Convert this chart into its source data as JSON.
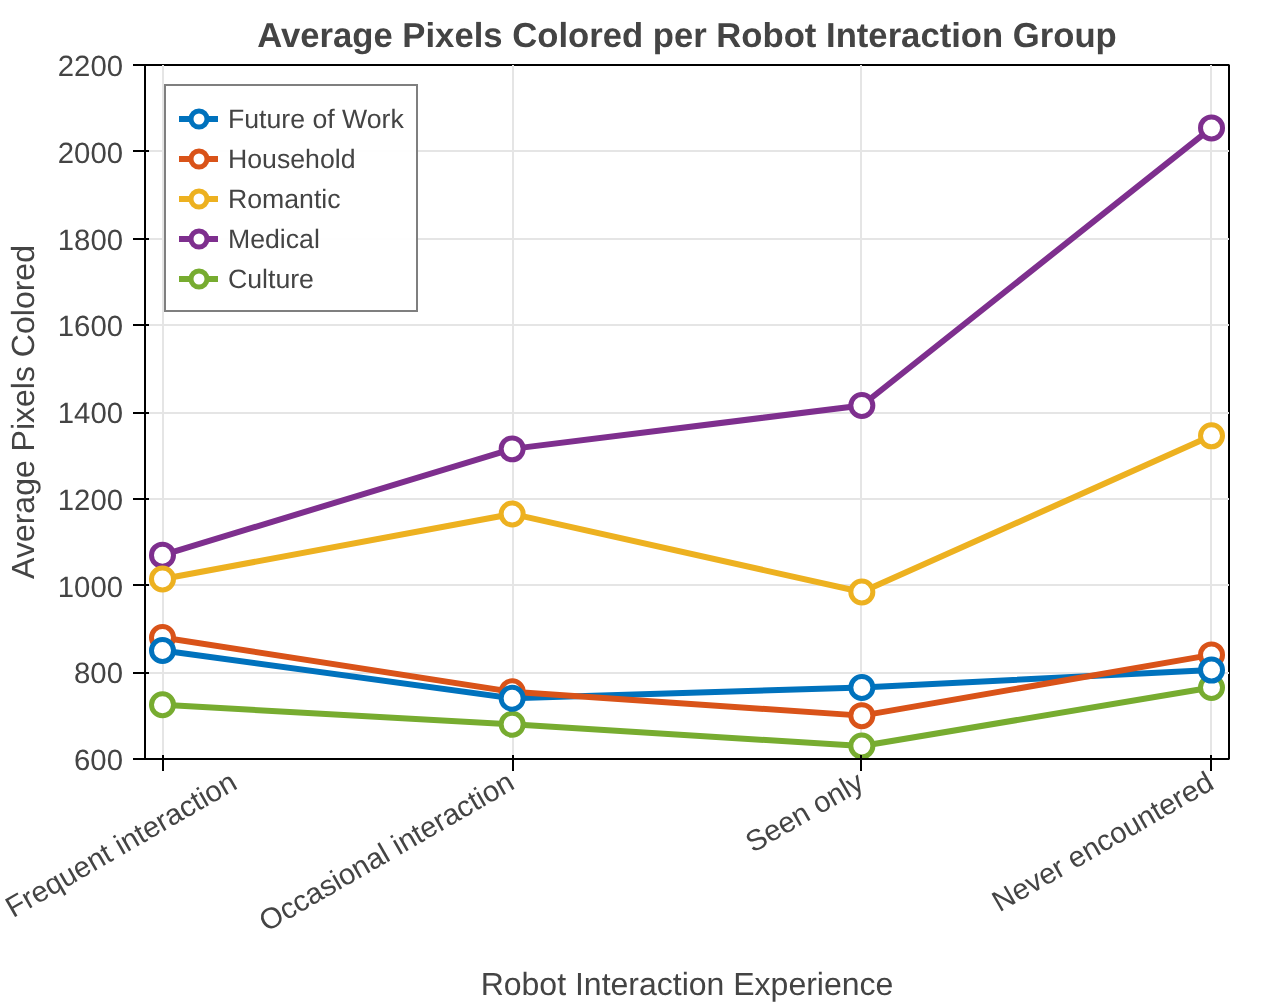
{
  "chart_data": {
    "type": "line",
    "title": "Average Pixels Colored per Robot Interaction Group",
    "xlabel": "Robot Interaction Experience",
    "ylabel": "Average Pixels Colored",
    "categories": [
      "Frequent interaction",
      "Occasional interaction",
      "Seen only",
      "Never encountered"
    ],
    "series": [
      {
        "name": "Future of Work",
        "color": "#0072bd",
        "values": [
          850,
          740,
          765,
          805
        ]
      },
      {
        "name": "Household",
        "color": "#d95319",
        "values": [
          880,
          755,
          700,
          840
        ]
      },
      {
        "name": "Romantic",
        "color": "#edb120",
        "values": [
          1015,
          1165,
          985,
          1345
        ]
      },
      {
        "name": "Medical",
        "color": "#7e2f8e",
        "values": [
          1070,
          1315,
          1415,
          2055
        ]
      },
      {
        "name": "Culture",
        "color": "#77ac30",
        "values": [
          725,
          680,
          630,
          765
        ]
      }
    ],
    "ylim": [
      600,
      2200
    ],
    "yticks": [
      600,
      800,
      1000,
      1200,
      1400,
      1600,
      1800,
      2000,
      2200
    ],
    "grid": true,
    "legend": "top left",
    "marker": "circle",
    "line_style": "solid"
  }
}
